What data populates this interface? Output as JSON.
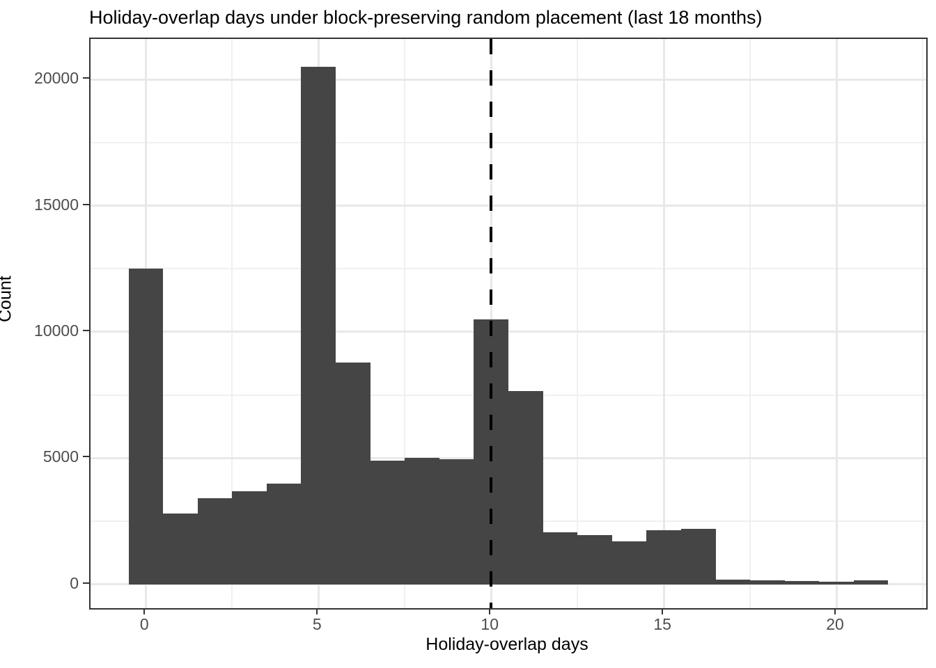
{
  "title": "Holiday-overlap days under block-preserving random placement (last 18 months)",
  "chart_data": {
    "type": "bar",
    "subtype": "histogram",
    "title": "Holiday-overlap days under block-preserving random placement (last 18 months)",
    "xlabel": "Holiday-overlap days",
    "ylabel": "Count",
    "bin_centers": [
      0,
      1,
      2,
      3,
      4,
      5,
      6,
      7,
      8,
      9,
      10,
      11,
      12,
      13,
      14,
      15,
      16,
      17,
      18,
      19,
      20,
      21
    ],
    "bin_width": 1,
    "values": [
      12500,
      2800,
      3400,
      3700,
      4000,
      20500,
      8800,
      4900,
      5000,
      4950,
      10500,
      7650,
      2050,
      1950,
      1700,
      2150,
      2200,
      200,
      160,
      130,
      100,
      160
    ],
    "x_ticks": [
      0,
      5,
      10,
      15,
      20
    ],
    "x_tick_labels": [
      "0",
      "5",
      "10",
      "15",
      "20"
    ],
    "y_ticks": [
      0,
      5000,
      10000,
      15000,
      20000
    ],
    "y_tick_labels": [
      "0",
      "5000",
      "10000",
      "15000",
      "20000"
    ],
    "x_minor_ticks": [
      2.5,
      7.5,
      12.5,
      17.5,
      22.5
    ],
    "y_minor_ticks": [
      2500,
      7500,
      12500,
      17500
    ],
    "xlim": [
      -1.6,
      22.6
    ],
    "ylim": [
      -940,
      21600
    ],
    "grid": "on",
    "legend": "none",
    "reference_line": {
      "orientation": "vertical",
      "x": 10,
      "style": "dashed",
      "color": "#000000"
    },
    "bar_color": "#454545"
  },
  "colors": {
    "bar_fill": "#454545",
    "panel_border": "#333333",
    "grid_major": "#e8e8e8",
    "grid_minor": "#f0f0f0",
    "tick_label": "#4d4d4d",
    "reference_line": "#000000",
    "background": "#ffffff"
  }
}
